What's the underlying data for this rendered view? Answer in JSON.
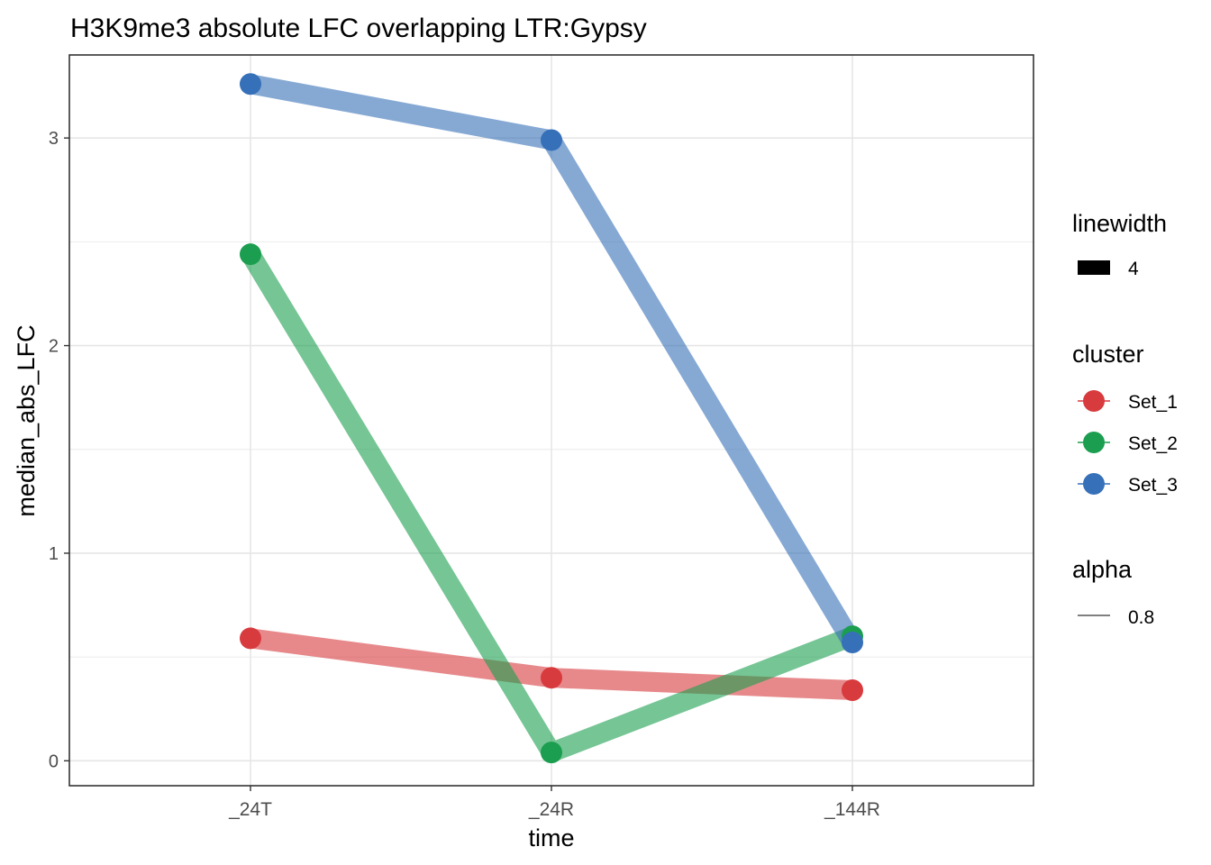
{
  "chart_data": {
    "type": "line",
    "title": "H3K9me3 absolute LFC overlapping LTR:Gypsy",
    "xlabel": "time",
    "ylabel": "median_abs_LFC",
    "categories": [
      "_24T",
      "_24R",
      "_144R"
    ],
    "y_ticks": [
      0,
      1,
      2,
      3
    ],
    "ylim": [
      -0.12,
      3.4
    ],
    "grid": true,
    "legend_position": "right",
    "series": [
      {
        "name": "Set_1",
        "color": "#D73B3E",
        "values": [
          0.59,
          0.4,
          0.34
        ]
      },
      {
        "name": "Set_2",
        "color": "#1B9E4F",
        "values": [
          2.44,
          0.04,
          0.6
        ]
      },
      {
        "name": "Set_3",
        "color": "#3670B8",
        "values": [
          3.26,
          2.99,
          0.57
        ]
      }
    ],
    "legend": {
      "linewidth": {
        "title": "linewidth",
        "label": "4"
      },
      "cluster": {
        "title": "cluster",
        "entries": [
          "Set_1",
          "Set_2",
          "Set_3"
        ]
      },
      "alpha": {
        "title": "alpha",
        "label": "0.8"
      }
    }
  }
}
